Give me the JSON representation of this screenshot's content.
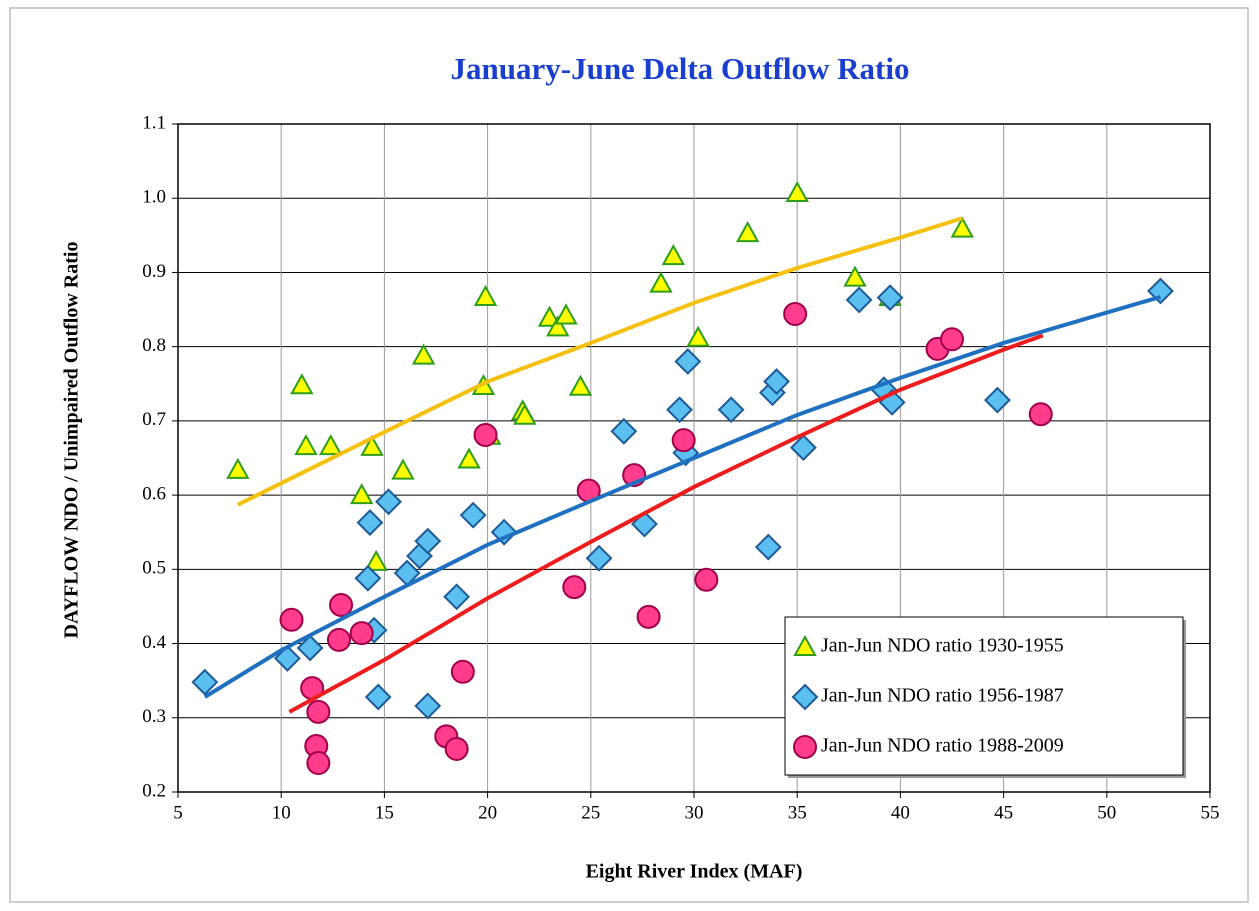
{
  "chart_data": {
    "type": "scatter",
    "title": "January-June Delta Outflow Ratio",
    "x_label": "Eight River Index (MAF)",
    "y_label": "DAYFLOW NDO / Unimpaired Outflow Ratio",
    "xlim": [
      5,
      55
    ],
    "ylim": [
      0.2,
      1.1
    ],
    "xticks": [
      5,
      10,
      15,
      20,
      25,
      30,
      35,
      40,
      45,
      50,
      55
    ],
    "yticks": [
      0.2,
      0.3,
      0.4,
      0.5,
      0.6,
      0.7,
      0.8,
      0.9,
      {
        "value": 1,
        "label": "1.0"
      },
      1.1
    ],
    "grid": true,
    "legend": "lower right",
    "series": [
      {
        "name": "Jan-Jun NDO ratio 1930-1955",
        "marker": "triangle",
        "color": "#ffff00",
        "edge_color": "#2e9e1a",
        "x": [
          7.9,
          11.0,
          11.2,
          12.4,
          14.4,
          13.9,
          15.9,
          14.6,
          16.9,
          19.1,
          19.9,
          19.8,
          20.1,
          21.7,
          21.8,
          23.0,
          23.4,
          23.8,
          24.5,
          28.4,
          29.0,
          30.2,
          32.6,
          35.0,
          37.8,
          39.5,
          43.0
        ],
        "values": [
          0.634,
          0.748,
          0.666,
          0.666,
          0.665,
          0.6,
          0.633,
          0.51,
          0.788,
          0.648,
          0.867,
          0.747,
          0.68,
          0.713,
          0.707,
          0.839,
          0.826,
          0.842,
          0.746,
          0.885,
          0.922,
          0.812,
          0.953,
          1.007,
          0.893,
          0.867,
          0.959
        ]
      },
      {
        "name": "Jan-Jun NDO ratio 1956-1987",
        "marker": "diamond",
        "color": "#5bc0f0",
        "edge_color": "#1e5a96",
        "x": [
          6.3,
          10.3,
          11.4,
          14.3,
          14.2,
          14.5,
          14.7,
          15.2,
          16.1,
          16.7,
          17.1,
          17.1,
          18.5,
          19.3,
          20.8,
          25.4,
          26.6,
          27.6,
          29.3,
          29.6,
          29.7,
          31.8,
          33.6,
          33.8,
          34.0,
          35.3,
          38.0,
          39.2,
          39.5,
          39.6,
          44.7,
          52.6
        ],
        "values": [
          0.348,
          0.38,
          0.394,
          0.563,
          0.488,
          0.418,
          0.328,
          0.591,
          0.495,
          0.518,
          0.538,
          0.316,
          0.463,
          0.573,
          0.55,
          0.515,
          0.686,
          0.561,
          0.715,
          0.657,
          0.78,
          0.715,
          0.53,
          0.738,
          0.753,
          0.664,
          0.863,
          0.742,
          0.866,
          0.725,
          0.728,
          0.875
        ]
      },
      {
        "name": "Jan-Jun NDO ratio 1988-2009",
        "marker": "circle",
        "color": "#ff3d8c",
        "edge_color": "#a0004a",
        "x": [
          10.5,
          11.5,
          11.8,
          11.7,
          11.8,
          12.9,
          12.8,
          13.9,
          18.0,
          18.5,
          18.8,
          19.9,
          24.2,
          24.9,
          27.1,
          27.8,
          29.5,
          30.6,
          34.9,
          41.8,
          42.5,
          46.8
        ],
        "values": [
          0.432,
          0.34,
          0.308,
          0.262,
          0.239,
          0.452,
          0.405,
          0.414,
          0.275,
          0.258,
          0.362,
          0.681,
          0.476,
          0.606,
          0.627,
          0.436,
          0.674,
          0.486,
          0.844,
          0.797,
          0.81,
          0.709
        ]
      }
    ],
    "trendlines": [
      {
        "color": "#f5c00f",
        "x": [
          7.9,
          15,
          20,
          25,
          30,
          35,
          40,
          43
        ],
        "values": [
          0.587,
          0.685,
          0.753,
          0.805,
          0.859,
          0.906,
          0.947,
          0.973
        ]
      },
      {
        "color": "#1f70c0",
        "x": [
          6.3,
          10,
          15,
          20,
          25,
          30,
          35,
          40,
          45,
          50,
          52.6
        ],
        "values": [
          0.328,
          0.391,
          0.463,
          0.533,
          0.592,
          0.65,
          0.708,
          0.758,
          0.805,
          0.846,
          0.867
        ]
      },
      {
        "color": "#ee1c1c",
        "x": [
          10.4,
          15,
          20,
          25,
          30,
          35,
          40,
          45,
          46.9
        ],
        "values": [
          0.308,
          0.378,
          0.461,
          0.537,
          0.611,
          0.678,
          0.742,
          0.796,
          0.815
        ]
      }
    ]
  }
}
